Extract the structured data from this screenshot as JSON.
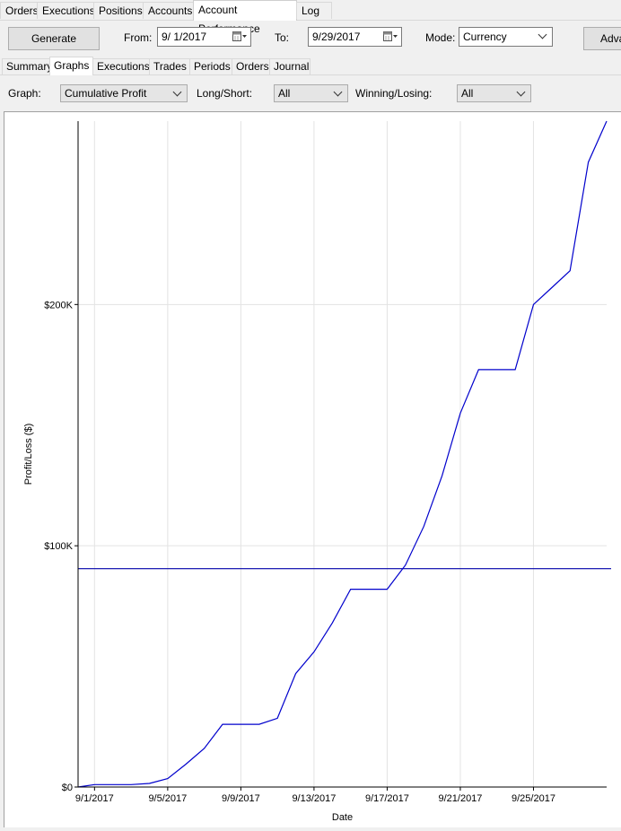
{
  "top_tabs": [
    {
      "label": "Orders",
      "active": false
    },
    {
      "label": "Executions",
      "active": false
    },
    {
      "label": "Positions",
      "active": false
    },
    {
      "label": "Accounts",
      "active": false
    },
    {
      "label": "Account Performance",
      "active": true
    },
    {
      "label": "Log",
      "active": false
    }
  ],
  "toolbar": {
    "generate_label": "Generate",
    "from_label": "From:",
    "from_value": "9/  1/2017",
    "to_label": "To:",
    "to_value": "9/29/2017",
    "mode_label": "Mode:",
    "mode_value": "Currency",
    "advanced_label": "Adva"
  },
  "sub_tabs": [
    {
      "label": "Summary",
      "active": false
    },
    {
      "label": "Graphs",
      "active": true
    },
    {
      "label": "Executions",
      "active": false
    },
    {
      "label": "Trades",
      "active": false
    },
    {
      "label": "Periods",
      "active": false
    },
    {
      "label": "Orders",
      "active": false
    },
    {
      "label": "Journal",
      "active": false
    }
  ],
  "filters": {
    "graph_label": "Graph:",
    "graph_value": "Cumulative Profit",
    "longshort_label": "Long/Short:",
    "longshort_value": "All",
    "winlose_label": "Winning/Losing:",
    "winlose_value": "All"
  },
  "chart_data": {
    "type": "line",
    "xlabel": "Date",
    "ylabel": "Profit/Loss ($)",
    "x_ticks": [
      "9/1/2017",
      "9/5/2017",
      "9/9/2017",
      "9/13/2017",
      "9/17/2017",
      "9/21/2017",
      "9/25/2017"
    ],
    "y_ticks": [
      {
        "value": 0,
        "label": "$0"
      },
      {
        "value": 100000,
        "label": "$100K"
      },
      {
        "value": 200000,
        "label": "$200K"
      }
    ],
    "ylim": [
      0,
      276000
    ],
    "xlim": [
      0.1,
      29.0
    ],
    "grid": true,
    "series": [
      {
        "color": "#0000cc",
        "points": [
          [
            0.1,
            0
          ],
          [
            1,
            1000
          ],
          [
            3,
            1000
          ],
          [
            4,
            1500
          ],
          [
            5,
            3500
          ],
          [
            6,
            9500
          ],
          [
            7,
            16000
          ],
          [
            8,
            26000
          ],
          [
            9,
            26000
          ],
          [
            10,
            26000
          ],
          [
            11,
            28500
          ],
          [
            12,
            47000
          ],
          [
            13,
            56000
          ],
          [
            14,
            68000
          ],
          [
            15,
            82000
          ],
          [
            16,
            82000
          ],
          [
            17,
            82000
          ],
          [
            18,
            92000
          ],
          [
            19,
            108000
          ],
          [
            20,
            129000
          ],
          [
            21,
            155000
          ],
          [
            22,
            173000
          ],
          [
            23,
            173000
          ],
          [
            24,
            173000
          ],
          [
            25,
            200000
          ],
          [
            26,
            207000
          ],
          [
            27,
            214000
          ],
          [
            28,
            259000
          ],
          [
            29,
            276000
          ]
        ]
      }
    ],
    "reference_line": {
      "value": 90500,
      "color": "#0000aa"
    }
  }
}
